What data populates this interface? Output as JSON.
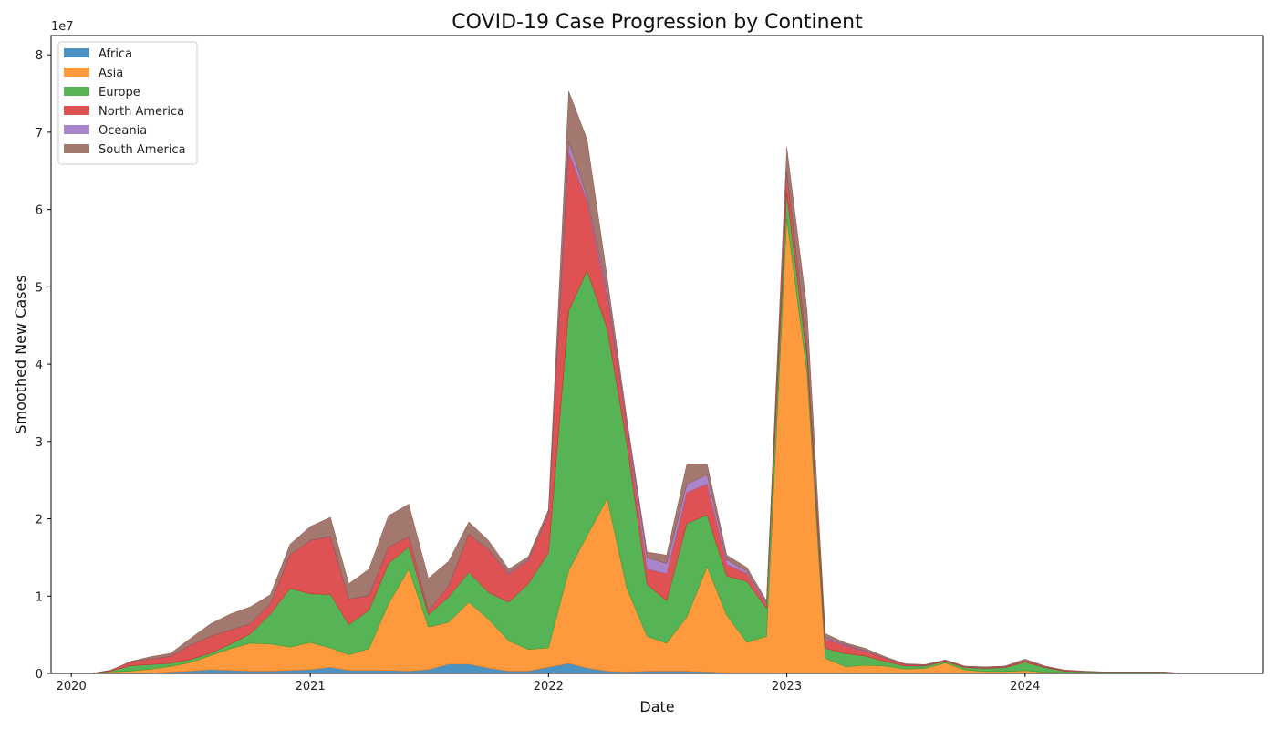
{
  "chart_data": {
    "type": "area",
    "stacked": true,
    "title": "COVID-19 Case Progression by Continent",
    "xlabel": "Date",
    "ylabel": "Smoothed New Cases",
    "y_scale_label": "1e7",
    "xlim": [
      "2019-12-01",
      "2024-12-31"
    ],
    "ylim": [
      0,
      82500000
    ],
    "x_ticks": [
      {
        "date": "2020-01-01",
        "label": "2020"
      },
      {
        "date": "2021-01-01",
        "label": "2021"
      },
      {
        "date": "2022-01-01",
        "label": "2022"
      },
      {
        "date": "2023-01-01",
        "label": "2023"
      },
      {
        "date": "2024-01-01",
        "label": "2024"
      }
    ],
    "y_ticks": [
      {
        "value": 0,
        "label": "0"
      },
      {
        "value": 10000000,
        "label": "1"
      },
      {
        "value": 20000000,
        "label": "2"
      },
      {
        "value": 30000000,
        "label": "3"
      },
      {
        "value": 40000000,
        "label": "4"
      },
      {
        "value": 50000000,
        "label": "5"
      },
      {
        "value": 60000000,
        "label": "6"
      },
      {
        "value": 70000000,
        "label": "7"
      },
      {
        "value": 80000000,
        "label": "8"
      }
    ],
    "legend_position": "upper-left",
    "grid": false,
    "x": [
      "2020-01-01",
      "2020-02-01",
      "2020-03-01",
      "2020-04-01",
      "2020-05-01",
      "2020-06-01",
      "2020-07-01",
      "2020-08-01",
      "2020-09-01",
      "2020-10-01",
      "2020-11-01",
      "2020-12-01",
      "2021-01-01",
      "2021-02-01",
      "2021-03-01",
      "2021-04-01",
      "2021-05-01",
      "2021-06-01",
      "2021-07-01",
      "2021-08-01",
      "2021-09-01",
      "2021-10-01",
      "2021-11-01",
      "2021-12-01",
      "2022-01-01",
      "2022-02-01",
      "2022-03-01",
      "2022-04-01",
      "2022-05-01",
      "2022-06-01",
      "2022-07-01",
      "2022-08-01",
      "2022-09-01",
      "2022-10-01",
      "2022-11-01",
      "2022-12-01",
      "2023-01-01",
      "2023-02-01",
      "2023-03-01",
      "2023-04-01",
      "2023-05-01",
      "2023-06-01",
      "2023-07-01",
      "2023-08-01",
      "2023-09-01",
      "2023-10-01",
      "2023-11-01",
      "2023-12-01",
      "2024-01-01",
      "2024-02-01",
      "2024-03-01",
      "2024-04-01",
      "2024-05-01",
      "2024-06-01",
      "2024-07-01",
      "2024-08-01",
      "2024-09-01"
    ],
    "series": [
      {
        "name": "Africa",
        "color": "#1f77b4",
        "values": [
          0,
          0,
          0,
          0,
          0.05,
          0.2,
          0.3,
          0.5,
          0.4,
          0.3,
          0.3,
          0.4,
          0.5,
          0.8,
          0.4,
          0.4,
          0.4,
          0.3,
          0.5,
          1.2,
          1.2,
          0.7,
          0.3,
          0.3,
          0.8,
          1.3,
          0.7,
          0.3,
          0.2,
          0.3,
          0.3,
          0.3,
          0.2,
          0.1,
          0.1,
          0.1,
          0.05,
          0.05,
          0.05,
          0.05,
          0.05,
          0.05,
          0.05,
          0.05,
          0.05,
          0.05,
          0.05,
          0.05,
          0.05,
          0.05,
          0,
          0,
          0,
          0,
          0,
          0,
          0
        ]
      },
      {
        "name": "Asia",
        "color": "#ff7f0e",
        "values": [
          0,
          0,
          0.2,
          0.3,
          0.5,
          0.7,
          1.1,
          1.8,
          2.8,
          3.6,
          3.5,
          3.0,
          3.5,
          2.5,
          2.0,
          2.8,
          8.6,
          13.2,
          5.5,
          5.4,
          8.0,
          6.3,
          3.9,
          2.8,
          2.5,
          12.0,
          17.1,
          22.3,
          10.8,
          4.5,
          3.6,
          7.0,
          13.6,
          7.4,
          3.9,
          4.7,
          58.8,
          38.8,
          1.9,
          0.8,
          1.0,
          0.9,
          0.5,
          0.6,
          1.3,
          0.4,
          0.2,
          0.2,
          0.3,
          0.1,
          0.1,
          0.1,
          0.05,
          0.05,
          0.05,
          0.05,
          0
        ]
      },
      {
        "name": "Europe",
        "color": "#2ca02c",
        "values": [
          0,
          0,
          0.1,
          0.7,
          0.6,
          0.4,
          0.4,
          0.3,
          0.6,
          1.2,
          3.9,
          7.6,
          6.3,
          6.9,
          3.9,
          5.0,
          5.2,
          2.9,
          1.6,
          3.3,
          3.9,
          3.5,
          5.0,
          8.5,
          12.3,
          33.6,
          34.3,
          22.0,
          18.7,
          6.7,
          5.5,
          12.1,
          6.7,
          5.1,
          7.9,
          3.6,
          3.3,
          2.0,
          1.3,
          1.7,
          1.2,
          0.6,
          0.4,
          0.3,
          0.2,
          0.3,
          0.4,
          0.5,
          1.1,
          0.6,
          0.2,
          0.1,
          0.1,
          0.1,
          0.1,
          0.1,
          0
        ]
      },
      {
        "name": "North America",
        "color": "#d62728",
        "values": [
          0,
          0,
          0.1,
          0.5,
          0.7,
          0.9,
          1.8,
          2.2,
          1.8,
          1.3,
          1.3,
          4.3,
          6.9,
          7.5,
          3.3,
          1.9,
          2.1,
          1.3,
          0.5,
          1.4,
          4.9,
          5.5,
          3.6,
          3.0,
          5.0,
          20.5,
          9.0,
          4.0,
          2.0,
          2.0,
          3.5,
          4.0,
          4.0,
          1.5,
          1.0,
          0.5,
          2.5,
          1.0,
          1.2,
          1.0,
          0.6,
          0.4,
          0.2,
          0.1,
          0.1,
          0.1,
          0.1,
          0.1,
          0.2,
          0.1,
          0.1,
          0.05,
          0,
          0,
          0,
          0,
          0
        ]
      },
      {
        "name": "Oceania",
        "color": "#9467bd",
        "values": [
          0,
          0,
          0,
          0,
          0,
          0,
          0,
          0,
          0,
          0,
          0,
          0,
          0,
          0,
          0,
          0,
          0,
          0,
          0,
          0,
          0,
          0,
          0.1,
          0.1,
          0.1,
          1.4,
          0.5,
          0.6,
          0.5,
          1.5,
          1.3,
          1.1,
          1.2,
          0.6,
          0.3,
          0.2,
          0.2,
          0.2,
          0.2,
          0.1,
          0.1,
          0,
          0,
          0,
          0,
          0,
          0,
          0,
          0,
          0,
          0,
          0,
          0,
          0,
          0,
          0,
          0
        ]
      },
      {
        "name": "South America",
        "color": "#8c564b",
        "values": [
          0,
          0,
          0,
          0.05,
          0.3,
          0.4,
          0.9,
          1.6,
          2.1,
          2.2,
          1.2,
          1.4,
          1.8,
          2.5,
          2.0,
          3.4,
          4.1,
          4.2,
          4.2,
          3.2,
          1.6,
          1.2,
          0.6,
          0.4,
          0.5,
          6.5,
          7.5,
          2.0,
          0.8,
          0.7,
          1.1,
          2.6,
          1.4,
          0.6,
          0.5,
          0.3,
          3.2,
          5.0,
          0.5,
          0.3,
          0.3,
          0.2,
          0.1,
          0.1,
          0.1,
          0.1,
          0.1,
          0.1,
          0.2,
          0.1,
          0.05,
          0.05,
          0.05,
          0.05,
          0.05,
          0.05,
          0
        ]
      }
    ],
    "values_unit_multiplier": 1000000
  }
}
